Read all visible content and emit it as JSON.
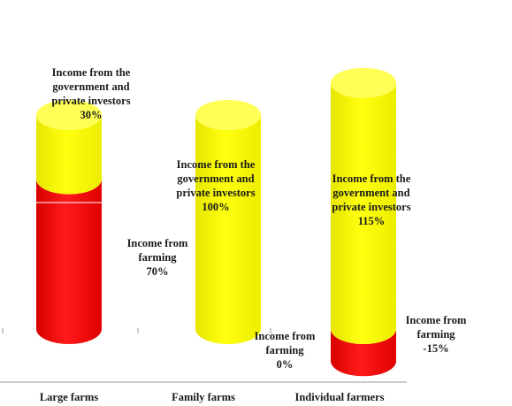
{
  "chart_data": {
    "type": "bar",
    "stacked": true,
    "style": "3d-cylinder",
    "categories": [
      "Large farms",
      "Family farms",
      "Individual farmers"
    ],
    "series": [
      {
        "name": "Income from farming",
        "color": "#ff0000",
        "values": [
          70,
          0,
          -15
        ],
        "labels": [
          [
            "Income from",
            "farming",
            "70%"
          ],
          [
            "Income from",
            "farming",
            "0%"
          ],
          [
            "Income from",
            "farming",
            "-15%"
          ]
        ]
      },
      {
        "name": "Income from the government and private investors",
        "color": "#ffff00",
        "values": [
          30,
          100,
          115
        ],
        "labels": [
          [
            "Income from the",
            "government and",
            "private investors",
            "30%"
          ],
          [
            "Income from the",
            "government and",
            "private investors",
            "100%"
          ],
          [
            "Income from the",
            "government and",
            "private investors",
            "115%"
          ]
        ]
      }
    ],
    "grid": false,
    "legend": "none"
  }
}
